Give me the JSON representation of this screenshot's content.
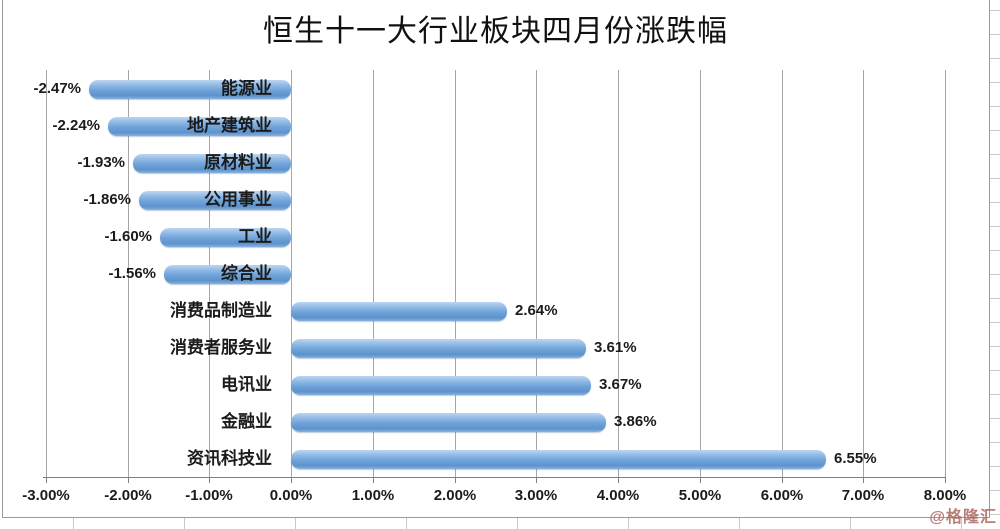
{
  "title": "恒生十一大行业板块四月份涨跌幅",
  "watermark": "@格隆汇",
  "colors": {
    "bar_fill": "#6ea2d8",
    "bar_highlight": "#bcd6f0",
    "gridline": "#a6a6a6",
    "axis": "#808080",
    "chart_border": "#9a9a9a",
    "sheet_gridline": "#c9c9c9",
    "label_text": "#1b1b1b",
    "watermark_color": "#ac6862"
  },
  "chart_data": {
    "type": "bar",
    "orientation": "horizontal",
    "title": "恒生十一大行业板块四月份涨跌幅",
    "categories": [
      "能源业",
      "地产建筑业",
      "原材料业",
      "公用事业",
      "工业",
      "综合业",
      "消费品制造业",
      "消费者服务业",
      "电讯业",
      "金融业",
      "资讯科技业"
    ],
    "values": [
      -2.47,
      -2.24,
      -1.93,
      -1.86,
      -1.6,
      -1.56,
      2.64,
      3.61,
      3.67,
      3.86,
      6.55
    ],
    "value_labels": [
      "-2.47%",
      "-2.24%",
      "-1.93%",
      "-1.86%",
      "-1.60%",
      "-1.56%",
      "2.64%",
      "3.61%",
      "3.67%",
      "3.86%",
      "6.55%"
    ],
    "xlabel": "",
    "ylabel": "",
    "xlim": [
      -3,
      8
    ],
    "x_ticks": [
      -3,
      -2,
      -1,
      0,
      1,
      2,
      3,
      4,
      5,
      6,
      7,
      8
    ],
    "x_tick_labels": [
      "-3.00%",
      "-2.00%",
      "-1.00%",
      "0.00%",
      "1.00%",
      "2.00%",
      "3.00%",
      "4.00%",
      "5.00%",
      "6.00%",
      "7.00%",
      "8.00%"
    ],
    "grid": true,
    "legend": false
  }
}
